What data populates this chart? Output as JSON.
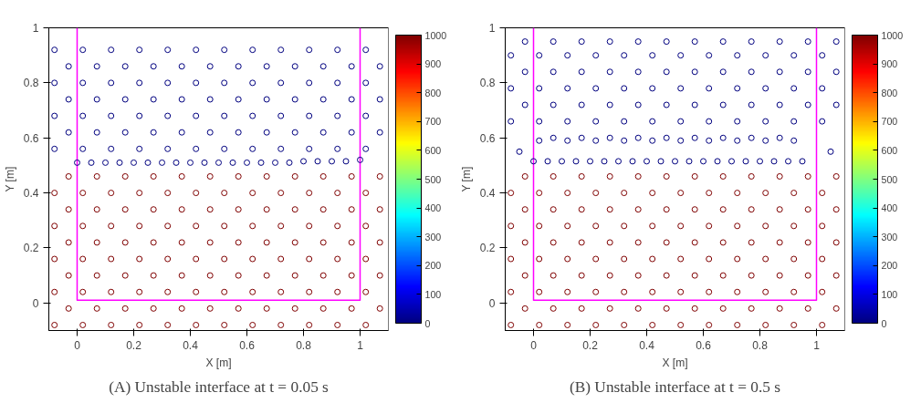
{
  "chart_data": [
    {
      "type": "scatter",
      "title": "(A) Unstable interface at t = 0.05 s",
      "xlabel": "X [m]",
      "ylabel": "Y [m]",
      "xlim": [
        -0.1,
        1.1
      ],
      "ylim": [
        -0.1,
        1
      ],
      "xticks": [
        0,
        0.2,
        0.4,
        0.6,
        0.8,
        1
      ],
      "yticks": [
        0,
        0.2,
        0.4,
        0.6,
        0.8,
        1
      ],
      "clim": [
        0,
        1000
      ],
      "cticks": [
        0,
        100,
        200,
        300,
        400,
        500,
        600,
        700,
        800,
        900,
        1000
      ],
      "grid": false,
      "marker": "circle",
      "series": [
        {
          "x": [
            -0.08,
            0.02,
            0.12,
            0.22,
            0.32,
            0.42,
            0.52,
            0.62,
            0.72,
            0.82,
            0.92,
            1.02,
            -0.03,
            0.07,
            0.17,
            0.27,
            0.37,
            0.47,
            0.57,
            0.67,
            0.77,
            0.87,
            0.97,
            1.07,
            -0.08,
            0.02,
            0.12,
            0.22,
            0.32,
            0.42,
            0.52,
            0.62,
            0.72,
            0.82,
            0.92,
            1.02,
            -0.03,
            0.07,
            0.17,
            0.27,
            0.37,
            0.47,
            0.57,
            0.67,
            0.77,
            0.87,
            0.97,
            1.07,
            -0.08,
            0.02,
            0.12,
            0.22,
            0.32,
            0.42,
            0.52,
            0.62,
            0.72,
            0.82,
            0.92,
            1.02,
            -0.03,
            0.07,
            0.17,
            0.27,
            0.37,
            0.47,
            0.57,
            0.67,
            0.77,
            0.87,
            0.97,
            1.07,
            -0.08,
            0.02,
            0.12,
            0.22,
            0.32,
            0.42,
            0.52,
            0.62,
            0.72,
            0.82,
            0.92,
            1.02,
            -0.03,
            0.07,
            0.17,
            0.27,
            0.37,
            0.47,
            0.57,
            0.67,
            0.77,
            0.87,
            0.97,
            1.07,
            -0.08,
            0.02,
            0.12,
            0.22,
            0.32,
            0.42,
            0.52,
            0.62,
            0.72,
            0.82,
            0.92,
            1.02,
            -0.03,
            0.07,
            0.17,
            0.27,
            0.37,
            0.47,
            0.57,
            0.67,
            0.77,
            0.87,
            0.97,
            1.07
          ],
          "values": [
            -0.08,
            -0.08,
            -0.08,
            -0.08,
            -0.08,
            -0.08,
            -0.08,
            -0.08,
            -0.08,
            -0.08,
            -0.08,
            -0.08,
            -0.02,
            -0.02,
            -0.02,
            -0.02,
            -0.02,
            -0.02,
            -0.02,
            -0.02,
            -0.02,
            -0.02,
            -0.02,
            -0.02,
            0.04,
            0.04,
            0.04,
            0.04,
            0.04,
            0.04,
            0.04,
            0.04,
            0.04,
            0.04,
            0.04,
            0.04,
            0.1,
            0.1,
            0.1,
            0.1,
            0.1,
            0.1,
            0.1,
            0.1,
            0.1,
            0.1,
            0.1,
            0.1,
            0.16,
            0.16,
            0.16,
            0.16,
            0.16,
            0.16,
            0.16,
            0.16,
            0.16,
            0.16,
            0.16,
            0.16,
            0.22,
            0.22,
            0.22,
            0.22,
            0.22,
            0.22,
            0.22,
            0.22,
            0.22,
            0.22,
            0.22,
            0.22,
            0.28,
            0.28,
            0.28,
            0.28,
            0.28,
            0.28,
            0.28,
            0.28,
            0.28,
            0.28,
            0.28,
            0.28,
            0.34,
            0.34,
            0.34,
            0.34,
            0.34,
            0.34,
            0.34,
            0.34,
            0.34,
            0.34,
            0.34,
            0.34,
            0.4,
            0.4,
            0.4,
            0.4,
            0.4,
            0.4,
            0.4,
            0.4,
            0.4,
            0.4,
            0.4,
            0.4,
            0.46,
            0.46,
            0.46,
            0.46,
            0.46,
            0.46,
            0.46,
            0.46,
            0.46,
            0.46,
            0.46,
            0.46
          ],
          "cvalues": [
            1000,
            1000,
            1000,
            1000,
            1000,
            1000,
            1000,
            1000,
            1000,
            1000,
            1000,
            1000,
            1000,
            1000,
            1000,
            1000,
            1000,
            1000,
            1000,
            1000,
            1000,
            1000,
            1000,
            1000,
            1000,
            1000,
            1000,
            1000,
            1000,
            1000,
            1000,
            1000,
            1000,
            1000,
            1000,
            1000,
            1000,
            1000,
            1000,
            1000,
            1000,
            1000,
            1000,
            1000,
            1000,
            1000,
            1000,
            1000,
            1000,
            1000,
            1000,
            1000,
            1000,
            1000,
            1000,
            1000,
            1000,
            1000,
            1000,
            1000,
            1000,
            1000,
            1000,
            1000,
            1000,
            1000,
            1000,
            1000,
            1000,
            1000,
            1000,
            1000,
            1000,
            1000,
            1000,
            1000,
            1000,
            1000,
            1000,
            1000,
            1000,
            1000,
            1000,
            1000,
            1000,
            1000,
            1000,
            1000,
            1000,
            1000,
            1000,
            1000,
            1000,
            1000,
            1000,
            1000,
            1000,
            1000,
            1000,
            1000,
            1000,
            1000,
            1000,
            1000,
            1000,
            1000,
            1000,
            1000,
            1000,
            1000,
            1000,
            1000,
            1000,
            1000,
            1000,
            1000,
            1000,
            1000,
            1000,
            1000
          ]
        },
        {
          "x": [
            -0.08,
            0.02,
            0.12,
            0.22,
            0.32,
            0.42,
            0.52,
            0.62,
            0.72,
            0.82,
            0.92,
            1.02,
            -0.03,
            0.07,
            0.17,
            0.27,
            0.37,
            0.47,
            0.57,
            0.67,
            0.77,
            0.87,
            0.97,
            1.07,
            -0.08,
            0.02,
            0.12,
            0.22,
            0.32,
            0.42,
            0.52,
            0.62,
            0.72,
            0.82,
            0.92,
            1.02,
            -0.03,
            0.07,
            0.17,
            0.27,
            0.37,
            0.47,
            0.57,
            0.67,
            0.77,
            0.87,
            0.97,
            1.07,
            -0.08,
            0.02,
            0.12,
            0.22,
            0.32,
            0.42,
            0.52,
            0.62,
            0.72,
            0.82,
            0.92,
            1.02,
            -0.03,
            0.07,
            0.17,
            0.27,
            0.37,
            0.47,
            0.57,
            0.67,
            0.77,
            0.87,
            0.97,
            1.07,
            -0.08,
            0.02,
            0.12,
            0.22,
            0.32,
            0.42,
            0.52,
            0.62,
            0.72,
            0.82,
            0.92,
            1.02
          ],
          "values": [
            0.56,
            0.56,
            0.56,
            0.56,
            0.56,
            0.56,
            0.56,
            0.56,
            0.56,
            0.56,
            0.56,
            0.56,
            0.62,
            0.62,
            0.62,
            0.62,
            0.62,
            0.62,
            0.62,
            0.62,
            0.62,
            0.62,
            0.62,
            0.62,
            0.68,
            0.68,
            0.68,
            0.68,
            0.68,
            0.68,
            0.68,
            0.68,
            0.68,
            0.68,
            0.68,
            0.68,
            0.74,
            0.74,
            0.74,
            0.74,
            0.74,
            0.74,
            0.74,
            0.74,
            0.74,
            0.74,
            0.74,
            0.74,
            0.8,
            0.8,
            0.8,
            0.8,
            0.8,
            0.8,
            0.8,
            0.8,
            0.8,
            0.8,
            0.8,
            0.8,
            0.86,
            0.86,
            0.86,
            0.86,
            0.86,
            0.86,
            0.86,
            0.86,
            0.86,
            0.86,
            0.86,
            0.86,
            0.92,
            0.92,
            0.92,
            0.92,
            0.92,
            0.92,
            0.92,
            0.92,
            0.92,
            0.92,
            0.92,
            0.92
          ],
          "cvalues": [
            1,
            1,
            1,
            1,
            1,
            1,
            1,
            1,
            1,
            1,
            1,
            1,
            1,
            1,
            1,
            1,
            1,
            1,
            1,
            1,
            1,
            1,
            1,
            1,
            1,
            1,
            1,
            1,
            1,
            1,
            1,
            1,
            1,
            1,
            1,
            1,
            1,
            1,
            1,
            1,
            1,
            1,
            1,
            1,
            1,
            1,
            1,
            1,
            1,
            1,
            1,
            1,
            1,
            1,
            1,
            1,
            1,
            1,
            1,
            1,
            1,
            1,
            1,
            1,
            1,
            1,
            1,
            1,
            1,
            1,
            1,
            1,
            1,
            1,
            1,
            1,
            1,
            1,
            1,
            1,
            1,
            1,
            1,
            1
          ]
        },
        {
          "x": [
            0,
            0.05,
            0.1,
            0.15,
            0.2,
            0.25,
            0.3,
            0.35,
            0.4,
            0.45,
            0.5,
            0.55,
            0.6,
            0.65,
            0.7,
            0.75,
            0.8,
            0.85,
            0.9,
            0.95,
            1
          ],
          "values": [
            0.51,
            0.51,
            0.51,
            0.51,
            0.51,
            0.51,
            0.51,
            0.51,
            0.51,
            0.51,
            0.51,
            0.51,
            0.51,
            0.51,
            0.51,
            0.51,
            0.515,
            0.515,
            0.515,
            0.515,
            0.52
          ],
          "cvalues": [
            1,
            1,
            1,
            1,
            1,
            1,
            1,
            1,
            1,
            1,
            1,
            1,
            1,
            1,
            1,
            1,
            1,
            1,
            1,
            1,
            1
          ]
        },
        {
          "type": "line",
          "color": "#ff00ff",
          "marker": "none",
          "x": [
            0,
            0,
            1,
            1
          ],
          "values": [
            1,
            0.01,
            0.01,
            1
          ]
        }
      ]
    },
    {
      "type": "scatter",
      "title": "(B) Unstable interface at t = 0.5 s",
      "xlabel": "X [m]",
      "ylabel": "Y [m]",
      "xlim": [
        -0.1,
        1.1
      ],
      "ylim": [
        -0.1,
        1
      ],
      "xticks": [
        0,
        0.2,
        0.4,
        0.6,
        0.8,
        1
      ],
      "yticks": [
        0,
        0.2,
        0.4,
        0.6,
        0.8,
        1
      ],
      "clim": [
        0,
        1000
      ],
      "cticks": [
        0,
        100,
        200,
        300,
        400,
        500,
        600,
        700,
        800,
        900,
        1000
      ],
      "grid": false,
      "marker": "circle",
      "series": [
        {
          "x": [
            -0.08,
            0.02,
            0.12,
            0.22,
            0.32,
            0.42,
            0.52,
            0.62,
            0.72,
            0.82,
            0.92,
            1.02,
            -0.03,
            0.07,
            0.17,
            0.27,
            0.37,
            0.47,
            0.57,
            0.67,
            0.77,
            0.87,
            0.97,
            1.07,
            -0.08,
            0.02,
            0.12,
            0.22,
            0.32,
            0.42,
            0.52,
            0.62,
            0.72,
            0.82,
            0.92,
            1.02,
            -0.03,
            0.07,
            0.17,
            0.27,
            0.37,
            0.47,
            0.57,
            0.67,
            0.77,
            0.87,
            0.97,
            1.07,
            -0.08,
            0.02,
            0.12,
            0.22,
            0.32,
            0.42,
            0.52,
            0.62,
            0.72,
            0.82,
            0.92,
            1.02,
            -0.03,
            0.07,
            0.17,
            0.27,
            0.37,
            0.47,
            0.57,
            0.67,
            0.77,
            0.87,
            0.97,
            1.07,
            -0.08,
            0.02,
            0.12,
            0.22,
            0.32,
            0.42,
            0.52,
            0.62,
            0.72,
            0.82,
            0.92,
            1.02,
            -0.03,
            0.07,
            0.17,
            0.27,
            0.37,
            0.47,
            0.57,
            0.67,
            0.77,
            0.87,
            0.97,
            1.07,
            -0.08,
            0.02,
            0.12,
            0.22,
            0.32,
            0.42,
            0.52,
            0.62,
            0.72,
            0.82,
            0.92,
            1.02,
            -0.03,
            0.07,
            0.17,
            0.27,
            0.37,
            0.47,
            0.57,
            0.67,
            0.77,
            0.87,
            0.97,
            1.07
          ],
          "values": [
            -0.08,
            -0.08,
            -0.08,
            -0.08,
            -0.08,
            -0.08,
            -0.08,
            -0.08,
            -0.08,
            -0.08,
            -0.08,
            -0.08,
            -0.02,
            -0.02,
            -0.02,
            -0.02,
            -0.02,
            -0.02,
            -0.02,
            -0.02,
            -0.02,
            -0.02,
            -0.02,
            -0.02,
            0.04,
            0.04,
            0.04,
            0.04,
            0.04,
            0.04,
            0.04,
            0.04,
            0.04,
            0.04,
            0.04,
            0.04,
            0.1,
            0.1,
            0.1,
            0.1,
            0.1,
            0.1,
            0.1,
            0.1,
            0.1,
            0.1,
            0.1,
            0.1,
            0.16,
            0.16,
            0.16,
            0.16,
            0.16,
            0.16,
            0.16,
            0.16,
            0.16,
            0.16,
            0.16,
            0.16,
            0.22,
            0.22,
            0.22,
            0.22,
            0.22,
            0.22,
            0.22,
            0.22,
            0.22,
            0.22,
            0.22,
            0.22,
            0.28,
            0.28,
            0.28,
            0.28,
            0.28,
            0.28,
            0.28,
            0.28,
            0.28,
            0.28,
            0.28,
            0.28,
            0.34,
            0.34,
            0.34,
            0.34,
            0.34,
            0.34,
            0.34,
            0.34,
            0.34,
            0.34,
            0.34,
            0.34,
            0.4,
            0.4,
            0.4,
            0.4,
            0.4,
            0.4,
            0.4,
            0.4,
            0.4,
            0.4,
            0.4,
            0.4,
            0.46,
            0.46,
            0.46,
            0.46,
            0.46,
            0.46,
            0.46,
            0.46,
            0.46,
            0.46,
            0.46,
            0.46
          ],
          "cvalues": [
            1000,
            1000,
            1000,
            1000,
            1000,
            1000,
            1000,
            1000,
            1000,
            1000,
            1000,
            1000,
            1000,
            1000,
            1000,
            1000,
            1000,
            1000,
            1000,
            1000,
            1000,
            1000,
            1000,
            1000,
            1000,
            1000,
            1000,
            1000,
            1000,
            1000,
            1000,
            1000,
            1000,
            1000,
            1000,
            1000,
            1000,
            1000,
            1000,
            1000,
            1000,
            1000,
            1000,
            1000,
            1000,
            1000,
            1000,
            1000,
            1000,
            1000,
            1000,
            1000,
            1000,
            1000,
            1000,
            1000,
            1000,
            1000,
            1000,
            1000,
            1000,
            1000,
            1000,
            1000,
            1000,
            1000,
            1000,
            1000,
            1000,
            1000,
            1000,
            1000,
            1000,
            1000,
            1000,
            1000,
            1000,
            1000,
            1000,
            1000,
            1000,
            1000,
            1000,
            1000,
            1000,
            1000,
            1000,
            1000,
            1000,
            1000,
            1000,
            1000,
            1000,
            1000,
            1000,
            1000,
            1000,
            1000,
            1000,
            1000,
            1000,
            1000,
            1000,
            1000,
            1000,
            1000,
            1000,
            1000,
            1000,
            1000,
            1000,
            1000,
            1000,
            1000,
            1000,
            1000,
            1000,
            1000,
            1000,
            1000
          ]
        },
        {
          "x": [
            -0.08,
            0.02,
            0.12,
            0.22,
            0.32,
            0.42,
            0.52,
            0.62,
            0.72,
            0.82,
            0.92,
            1.02,
            -0.03,
            0.07,
            0.17,
            0.27,
            0.37,
            0.47,
            0.57,
            0.67,
            0.77,
            0.87,
            0.97,
            1.07,
            -0.08,
            0.02,
            0.12,
            0.22,
            0.32,
            0.42,
            0.52,
            0.62,
            0.72,
            0.82,
            0.92,
            1.02,
            -0.03,
            0.07,
            0.17,
            0.27,
            0.37,
            0.47,
            0.57,
            0.67,
            0.77,
            0.87,
            0.97,
            1.07,
            -0.08,
            0.02,
            0.12,
            0.22,
            0.32,
            0.42,
            0.52,
            0.62,
            0.72,
            0.82,
            0.92,
            1.02,
            -0.03,
            0.07,
            0.17,
            0.27,
            0.37,
            0.47,
            0.57,
            0.67,
            0.77,
            0.87,
            0.97,
            1.07
          ],
          "values": [
            0.66,
            0.66,
            0.66,
            0.66,
            0.66,
            0.66,
            0.66,
            0.66,
            0.66,
            0.66,
            0.66,
            0.66,
            0.72,
            0.72,
            0.72,
            0.72,
            0.72,
            0.72,
            0.72,
            0.72,
            0.72,
            0.72,
            0.72,
            0.72,
            0.78,
            0.78,
            0.78,
            0.78,
            0.78,
            0.78,
            0.78,
            0.78,
            0.78,
            0.78,
            0.78,
            0.78,
            0.84,
            0.84,
            0.84,
            0.84,
            0.84,
            0.84,
            0.84,
            0.84,
            0.84,
            0.84,
            0.84,
            0.84,
            0.9,
            0.9,
            0.9,
            0.9,
            0.9,
            0.9,
            0.9,
            0.9,
            0.9,
            0.9,
            0.9,
            0.9,
            0.95,
            0.95,
            0.95,
            0.95,
            0.95,
            0.95,
            0.95,
            0.95,
            0.95,
            0.95,
            0.95,
            0.95
          ],
          "cvalues": [
            1,
            1,
            1,
            1,
            1,
            1,
            1,
            1,
            1,
            1,
            1,
            1,
            1,
            1,
            1,
            1,
            1,
            1,
            1,
            1,
            1,
            1,
            1,
            1,
            1,
            1,
            1,
            1,
            1,
            1,
            1,
            1,
            1,
            1,
            1,
            1,
            1,
            1,
            1,
            1,
            1,
            1,
            1,
            1,
            1,
            1,
            1,
            1,
            1,
            1,
            1,
            1,
            1,
            1,
            1,
            1,
            1,
            1,
            1,
            1,
            1,
            1,
            1,
            1,
            1,
            1,
            1,
            1,
            1,
            1,
            1,
            1
          ]
        },
        {
          "x": [
            0,
            0.05,
            0.1,
            0.15,
            0.2,
            0.25,
            0.3,
            0.35,
            0.4,
            0.45,
            0.5,
            0.55,
            0.6,
            0.65,
            0.7,
            0.75,
            0.8,
            0.85,
            0.9,
            0.95,
            0.02,
            0.07,
            0.12,
            0.17,
            0.22,
            0.27,
            0.32,
            0.37,
            0.42,
            0.47,
            0.52,
            0.57,
            0.62,
            0.67,
            0.72,
            0.77,
            0.82,
            0.87,
            0.92,
            -0.05,
            1.05
          ],
          "values": [
            0.515,
            0.515,
            0.515,
            0.515,
            0.515,
            0.515,
            0.515,
            0.515,
            0.515,
            0.515,
            0.515,
            0.515,
            0.515,
            0.515,
            0.515,
            0.515,
            0.515,
            0.515,
            0.515,
            0.515,
            0.59,
            0.6,
            0.59,
            0.6,
            0.59,
            0.6,
            0.59,
            0.6,
            0.59,
            0.6,
            0.59,
            0.6,
            0.59,
            0.6,
            0.59,
            0.6,
            0.59,
            0.6,
            0.59,
            0.55,
            0.55
          ],
          "cvalues": [
            1,
            1,
            1,
            1,
            1,
            1,
            1,
            1,
            1,
            1,
            1,
            1,
            1,
            1,
            1,
            1,
            1,
            1,
            1,
            1,
            1,
            1,
            1,
            1,
            1,
            1,
            1,
            1,
            1,
            1,
            1,
            1,
            1,
            1,
            1,
            1,
            1,
            1,
            1,
            1,
            1
          ]
        },
        {
          "type": "line",
          "color": "#ff00ff",
          "marker": "none",
          "x": [
            0,
            0,
            1,
            1
          ],
          "values": [
            1,
            0.01,
            0.01,
            1
          ]
        }
      ]
    }
  ]
}
